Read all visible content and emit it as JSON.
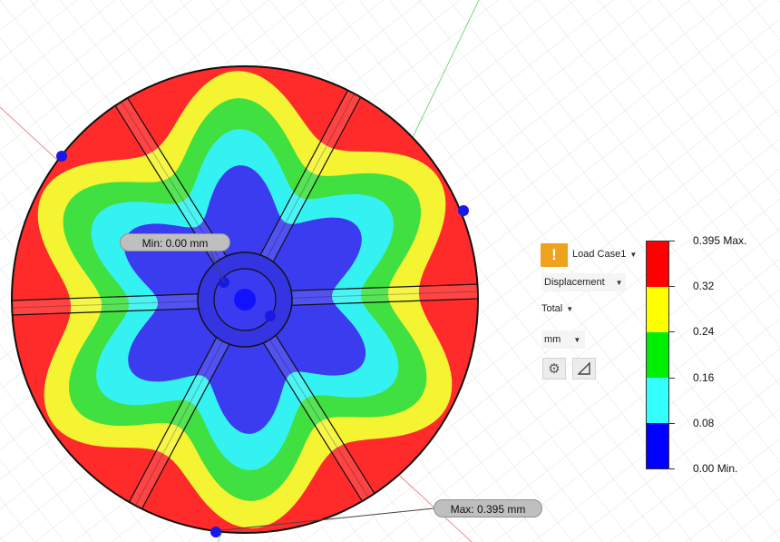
{
  "plot": {
    "min_label": "Min: 0.00 mm",
    "max_label": "Max: 0.395 mm",
    "spokes": 6
  },
  "panel": {
    "warning_icon": "!",
    "load_case": "Load Case1",
    "result_type": "Displacement",
    "component": "Total",
    "unit": "mm",
    "settings_icon": "gear-icon",
    "probe_icon": "triangle-probe-icon"
  },
  "legend": {
    "entries": [
      {
        "label": "0.395 Max.",
        "value": 0.395
      },
      {
        "label": "0.32",
        "value": 0.32
      },
      {
        "label": "0.24",
        "value": 0.24
      },
      {
        "label": "0.16",
        "value": 0.16
      },
      {
        "label": "0.08",
        "value": 0.08
      },
      {
        "label": "0.00 Min.",
        "value": 0.0
      }
    ],
    "colors": [
      "#ff0000",
      "#ffff00",
      "#00ee00",
      "#33ffff",
      "#0000ff"
    ]
  },
  "colors": {
    "red": "#ff2b2b",
    "yellow": "#f4f432",
    "green": "#3fe03f",
    "cyan": "#35f2f2",
    "blue": "#3b3bf0",
    "warning": "#f0a21f"
  }
}
